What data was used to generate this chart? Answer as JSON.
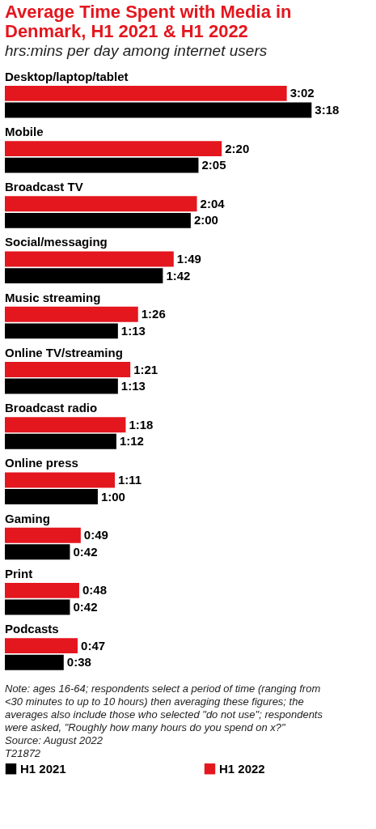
{
  "chart_data": {
    "type": "bar",
    "orientation": "horizontal",
    "title": "Average Time Spent with Media in Denmark, H1 2021 & H1 2022",
    "subtitle": "hrs:mins per day among internet users",
    "categories": [
      "Desktop/laptop/tablet",
      "Mobile",
      "Broadcast TV",
      "Social/messaging",
      "Music streaming",
      "Online TV/streaming",
      "Broadcast radio",
      "Online press",
      "Gaming",
      "Print",
      "Podcasts"
    ],
    "series": [
      {
        "name": "H1 2021",
        "color": "#000000",
        "values": [
          198,
          125,
          120,
          102,
          73,
          73,
          72,
          60,
          42,
          42,
          38
        ],
        "value_labels": [
          "3:18",
          "2:05",
          "2:00",
          "1:42",
          "1:13",
          "1:13",
          "1:12",
          "1:00",
          "0:42",
          "0:42",
          "0:38"
        ]
      },
      {
        "name": "H1 2022",
        "color": "#e4161e",
        "values": [
          182,
          140,
          124,
          109,
          86,
          81,
          78,
          71,
          49,
          48,
          47
        ],
        "value_labels": [
          "3:02",
          "2:20",
          "2:04",
          "1:49",
          "1:26",
          "1:21",
          "1:18",
          "1:11",
          "0:49",
          "0:48",
          "0:47"
        ]
      }
    ],
    "legend": "bottom",
    "annotations": [
      "Note: ages 16-64; respondents select a period of time (ranging from <30 minutes to up to 10 hours) then averaging these figures; the averages also include those who selected \"do not use\"; respondents were asked, \"Roughly how many hours do you spend on x?\"",
      "Source: August 2022",
      "T21872"
    ]
  }
}
